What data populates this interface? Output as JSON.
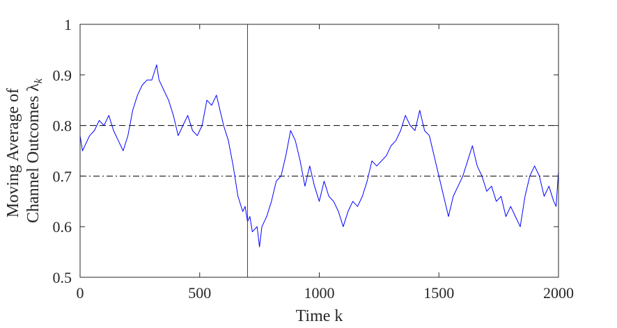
{
  "chart_data": {
    "type": "line",
    "xlabel": "Time k",
    "ylabel_line1": "Moving Average of",
    "ylabel_line2": "Channel Outcomes λ",
    "ylabel_subscript": "k",
    "xlim": [
      0,
      2000
    ],
    "ylim": [
      0.5,
      1
    ],
    "xticks": [
      0,
      500,
      1000,
      1500,
      2000
    ],
    "xtick_labels": [
      "0",
      "500",
      "1000",
      "1500",
      "2000"
    ],
    "yticks": [
      0.5,
      0.6,
      0.7,
      0.8,
      0.9,
      1
    ],
    "ytick_labels": [
      "0.5",
      "0.6",
      "0.7",
      "0.8",
      "0.9",
      "1"
    ],
    "grid": false,
    "series": [
      {
        "color": "#0000ff",
        "x": [
          0,
          10,
          20,
          40,
          60,
          80,
          100,
          120,
          140,
          160,
          180,
          200,
          220,
          240,
          260,
          280,
          300,
          320,
          330,
          350,
          370,
          390,
          410,
          430,
          450,
          470,
          490,
          510,
          530,
          550,
          570,
          590,
          600,
          620,
          640,
          660,
          680,
          690,
          700,
          710,
          720,
          740,
          750,
          760,
          780,
          800,
          820,
          840,
          860,
          880,
          900,
          920,
          940,
          960,
          980,
          1000,
          1020,
          1040,
          1060,
          1080,
          1100,
          1120,
          1140,
          1160,
          1180,
          1200,
          1220,
          1240,
          1260,
          1280,
          1300,
          1320,
          1340,
          1360,
          1380,
          1400,
          1420,
          1440,
          1460,
          1480,
          1500,
          1520,
          1540,
          1560,
          1580,
          1600,
          1620,
          1640,
          1660,
          1680,
          1700,
          1720,
          1740,
          1760,
          1780,
          1800,
          1820,
          1840,
          1860,
          1880,
          1900,
          1920,
          1940,
          1960,
          1980,
          1990,
          2000
        ],
        "y": [
          0.78,
          0.75,
          0.76,
          0.78,
          0.79,
          0.81,
          0.8,
          0.82,
          0.79,
          0.77,
          0.75,
          0.78,
          0.83,
          0.86,
          0.88,
          0.89,
          0.89,
          0.92,
          0.89,
          0.87,
          0.85,
          0.82,
          0.78,
          0.8,
          0.82,
          0.79,
          0.78,
          0.8,
          0.85,
          0.84,
          0.86,
          0.82,
          0.8,
          0.77,
          0.72,
          0.66,
          0.63,
          0.64,
          0.61,
          0.62,
          0.59,
          0.6,
          0.56,
          0.6,
          0.62,
          0.65,
          0.69,
          0.7,
          0.74,
          0.79,
          0.77,
          0.73,
          0.68,
          0.72,
          0.68,
          0.65,
          0.69,
          0.66,
          0.65,
          0.63,
          0.6,
          0.63,
          0.65,
          0.64,
          0.66,
          0.69,
          0.73,
          0.72,
          0.73,
          0.74,
          0.76,
          0.77,
          0.79,
          0.82,
          0.8,
          0.79,
          0.83,
          0.79,
          0.78,
          0.74,
          0.7,
          0.66,
          0.62,
          0.66,
          0.68,
          0.7,
          0.73,
          0.76,
          0.72,
          0.7,
          0.67,
          0.68,
          0.65,
          0.66,
          0.62,
          0.64,
          0.62,
          0.6,
          0.66,
          0.7,
          0.72,
          0.7,
          0.66,
          0.68,
          0.65,
          0.64,
          0.71
        ]
      }
    ],
    "reference_lines": [
      {
        "y": 0.8,
        "style": "dashed",
        "color": "#000000"
      },
      {
        "y": 0.7,
        "style": "dashdot",
        "color": "#000000"
      }
    ],
    "vertical_lines": [
      {
        "x": 700,
        "color": "#cc0000"
      }
    ]
  }
}
